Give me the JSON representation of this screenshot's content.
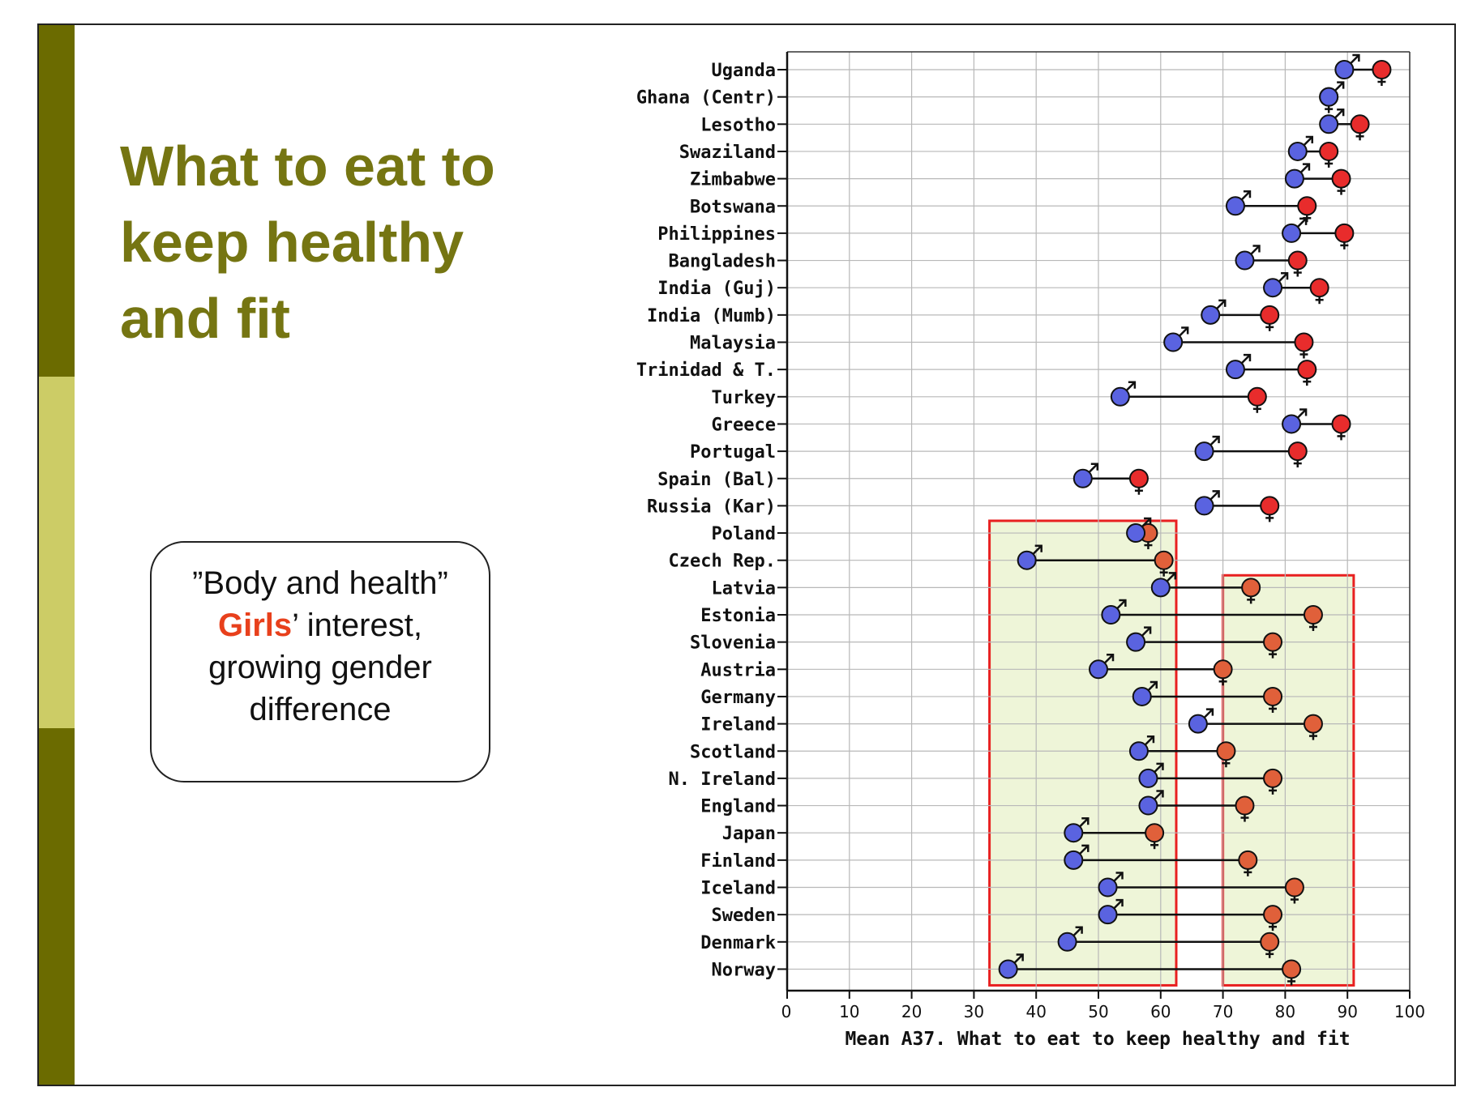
{
  "slide": {
    "title_lines": [
      "What to eat to",
      "keep healthy",
      "and fit"
    ],
    "callout": {
      "line1": "”Body and health”",
      "accent_word": "Girls",
      "line2_rest": "’ interest,",
      "line3": "growing gender",
      "line4": "difference"
    }
  },
  "colors": {
    "title": "#757512",
    "sidebar_dark": "#6b6b00",
    "sidebar_light": "#cccc66",
    "boys": "#5a63e0",
    "girls_group1": "#e82c2c",
    "girls_group2": "#e0603a",
    "highlight_fill": "#eef5d8",
    "highlight_border": "#e82020",
    "accent": "#e8401c"
  },
  "chart_data": {
    "type": "dumbbell",
    "title": "",
    "xlabel": "Mean A37. What to eat to keep healthy and fit",
    "ylabel": "",
    "xlim": [
      0,
      100
    ],
    "xticks": [
      0,
      10,
      20,
      30,
      40,
      50,
      60,
      70,
      80,
      90,
      100
    ],
    "grid": true,
    "series": [
      {
        "name": "Boys",
        "symbol": "♂"
      },
      {
        "name": "Girls",
        "symbol": "♀"
      }
    ],
    "rows": [
      {
        "country": "Uganda",
        "boys": 89.5,
        "girls": 95.5,
        "group": 1
      },
      {
        "country": "Ghana (Centr)",
        "boys": 87,
        "girls": 87,
        "group": 1
      },
      {
        "country": "Lesotho",
        "boys": 87,
        "girls": 92,
        "group": 1
      },
      {
        "country": "Swaziland",
        "boys": 82,
        "girls": 87,
        "group": 1
      },
      {
        "country": "Zimbabwe",
        "boys": 81.5,
        "girls": 89,
        "group": 1
      },
      {
        "country": "Botswana",
        "boys": 72,
        "girls": 83.5,
        "group": 1
      },
      {
        "country": "Philippines",
        "boys": 81,
        "girls": 89.5,
        "group": 1
      },
      {
        "country": "Bangladesh",
        "boys": 73.5,
        "girls": 82,
        "group": 1
      },
      {
        "country": "India (Guj)",
        "boys": 78,
        "girls": 85.5,
        "group": 1
      },
      {
        "country": "India (Mumb)",
        "boys": 68,
        "girls": 77.5,
        "group": 1
      },
      {
        "country": "Malaysia",
        "boys": 62,
        "girls": 83,
        "group": 1
      },
      {
        "country": "Trinidad & T.",
        "boys": 72,
        "girls": 83.5,
        "group": 1
      },
      {
        "country": "Turkey",
        "boys": 53.5,
        "girls": 75.5,
        "group": 1
      },
      {
        "country": "Greece",
        "boys": 81,
        "girls": 89,
        "group": 1
      },
      {
        "country": "Portugal",
        "boys": 67,
        "girls": 82,
        "group": 1
      },
      {
        "country": "Spain (Bal)",
        "boys": 47.5,
        "girls": 56.5,
        "group": 1
      },
      {
        "country": "Russia (Kar)",
        "boys": 67,
        "girls": 77.5,
        "group": 1
      },
      {
        "country": "Poland",
        "boys": 56,
        "girls": 58,
        "group": 2
      },
      {
        "country": "Czech Rep.",
        "boys": 38.5,
        "girls": 60.5,
        "group": 2
      },
      {
        "country": "Latvia",
        "boys": 60,
        "girls": 74.5,
        "group": 2
      },
      {
        "country": "Estonia",
        "boys": 52,
        "girls": 84.5,
        "group": 2
      },
      {
        "country": "Slovenia",
        "boys": 56,
        "girls": 78,
        "group": 2
      },
      {
        "country": "Austria",
        "boys": 50,
        "girls": 70,
        "group": 2
      },
      {
        "country": "Germany",
        "boys": 57,
        "girls": 78,
        "group": 2
      },
      {
        "country": "Ireland",
        "boys": 66,
        "girls": 84.5,
        "group": 2
      },
      {
        "country": "Scotland",
        "boys": 56.5,
        "girls": 70.5,
        "group": 2
      },
      {
        "country": "N. Ireland",
        "boys": 58,
        "girls": 78,
        "group": 2
      },
      {
        "country": "England",
        "boys": 58,
        "girls": 73.5,
        "group": 2
      },
      {
        "country": "Japan",
        "boys": 46,
        "girls": 59,
        "group": 2
      },
      {
        "country": "Finland",
        "boys": 46,
        "girls": 74,
        "group": 2
      },
      {
        "country": "Iceland",
        "boys": 51.5,
        "girls": 81.5,
        "group": 2
      },
      {
        "country": "Sweden",
        "boys": 51.5,
        "girls": 78,
        "group": 2
      },
      {
        "country": "Denmark",
        "boys": 45,
        "girls": 77.5,
        "group": 2
      },
      {
        "country": "Norway",
        "boys": 35.5,
        "girls": 81,
        "group": 2
      }
    ],
    "highlight_regions": [
      {
        "label": "boys-range",
        "x_from": 32.5,
        "x_to": 62.5,
        "row_from": "Poland",
        "row_to": "Norway"
      },
      {
        "label": "girls-range",
        "x_from": 70,
        "x_to": 91,
        "row_from": "Latvia",
        "row_to": "Norway"
      }
    ]
  }
}
